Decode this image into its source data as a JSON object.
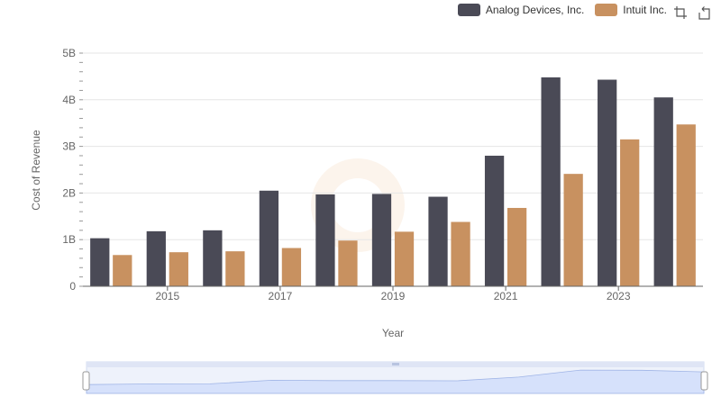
{
  "chart_data": {
    "type": "bar",
    "title": "",
    "xlabel": "Year",
    "ylabel": "Cost of Revenue",
    "categories": [
      "2014",
      "2015",
      "2016",
      "2017",
      "2018",
      "2019",
      "2020",
      "2021",
      "2022",
      "2023",
      "2024"
    ],
    "x_tick_labels": [
      "2015",
      "2017",
      "2019",
      "2021",
      "2023"
    ],
    "y_tick_labels": [
      "0",
      "1B",
      "2B",
      "3B",
      "4B",
      "5B"
    ],
    "ylim": [
      0,
      5000000000
    ],
    "series": [
      {
        "name": "Analog Devices, Inc.",
        "color": "#4a4a56",
        "values": [
          1030000000,
          1180000000,
          1200000000,
          2050000000,
          1970000000,
          1980000000,
          1920000000,
          2800000000,
          4480000000,
          4430000000,
          4050000000
        ]
      },
      {
        "name": "Intuit Inc.",
        "color": "#c89160",
        "values": [
          670000000,
          730000000,
          750000000,
          820000000,
          980000000,
          1170000000,
          1380000000,
          1680000000,
          2410000000,
          3150000000,
          3470000000
        ]
      }
    ],
    "legend_position": "top-right",
    "grid": true
  },
  "toolbar": {
    "zoom_icon": "crop-icon",
    "reset_icon": "reset-icon"
  }
}
